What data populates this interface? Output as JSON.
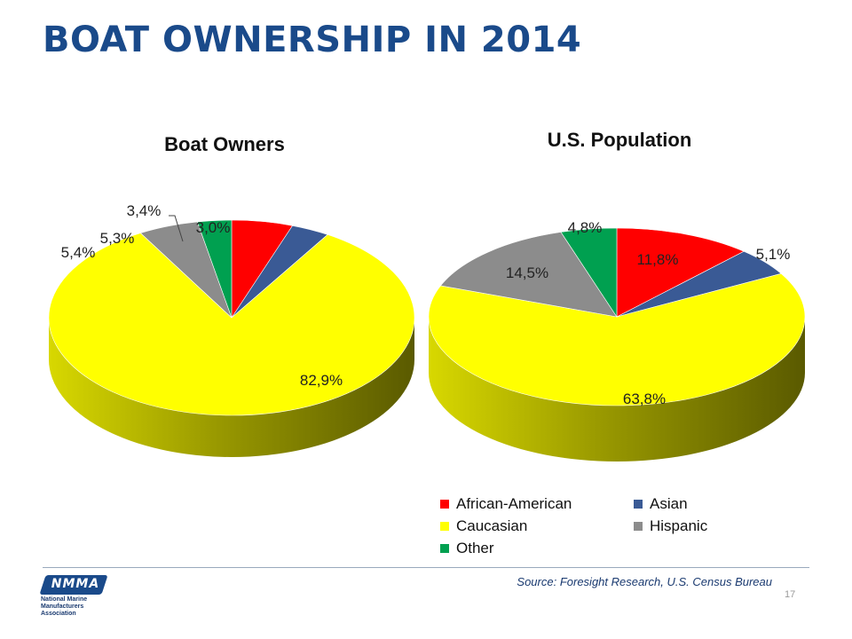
{
  "slide": {
    "title": "BOAT OWNERSHIP IN 2014",
    "source": "Source: Foresight Research, U.S. Census Bureau",
    "page_number": "17"
  },
  "logo": {
    "word": "NMMA",
    "subtitle": "National Marine Manufacturers Association"
  },
  "colors": {
    "African-American": "#ff0000",
    "Asian": "#3a5a95",
    "Caucasian": "#ffff00",
    "Hispanic": "#8c8c8c",
    "Other": "#00a050",
    "title": "#1a4a8a"
  },
  "legend": {
    "items": [
      "African-American",
      "Asian",
      "Caucasian",
      "Hispanic",
      "Other"
    ]
  },
  "chart_data": [
    {
      "type": "pie",
      "title": "Boat Owners",
      "categories": [
        "African-American",
        "Asian",
        "Caucasian",
        "Hispanic",
        "Other"
      ],
      "values": [
        5.4,
        3.4,
        82.9,
        5.3,
        3.0
      ],
      "labels": [
        "5,4%",
        "3,4%",
        "82,9%",
        "5,3%",
        "3,0%"
      ],
      "legend": "bottom-right"
    },
    {
      "type": "pie",
      "title": "U.S. Population",
      "categories": [
        "African-American",
        "Asian",
        "Caucasian",
        "Hispanic",
        "Other"
      ],
      "values": [
        11.8,
        5.1,
        63.8,
        14.5,
        4.8
      ],
      "labels": [
        "11,8%",
        "5,1%",
        "63,8%",
        "14,5%",
        "4,8%"
      ],
      "legend": "bottom-right"
    }
  ]
}
